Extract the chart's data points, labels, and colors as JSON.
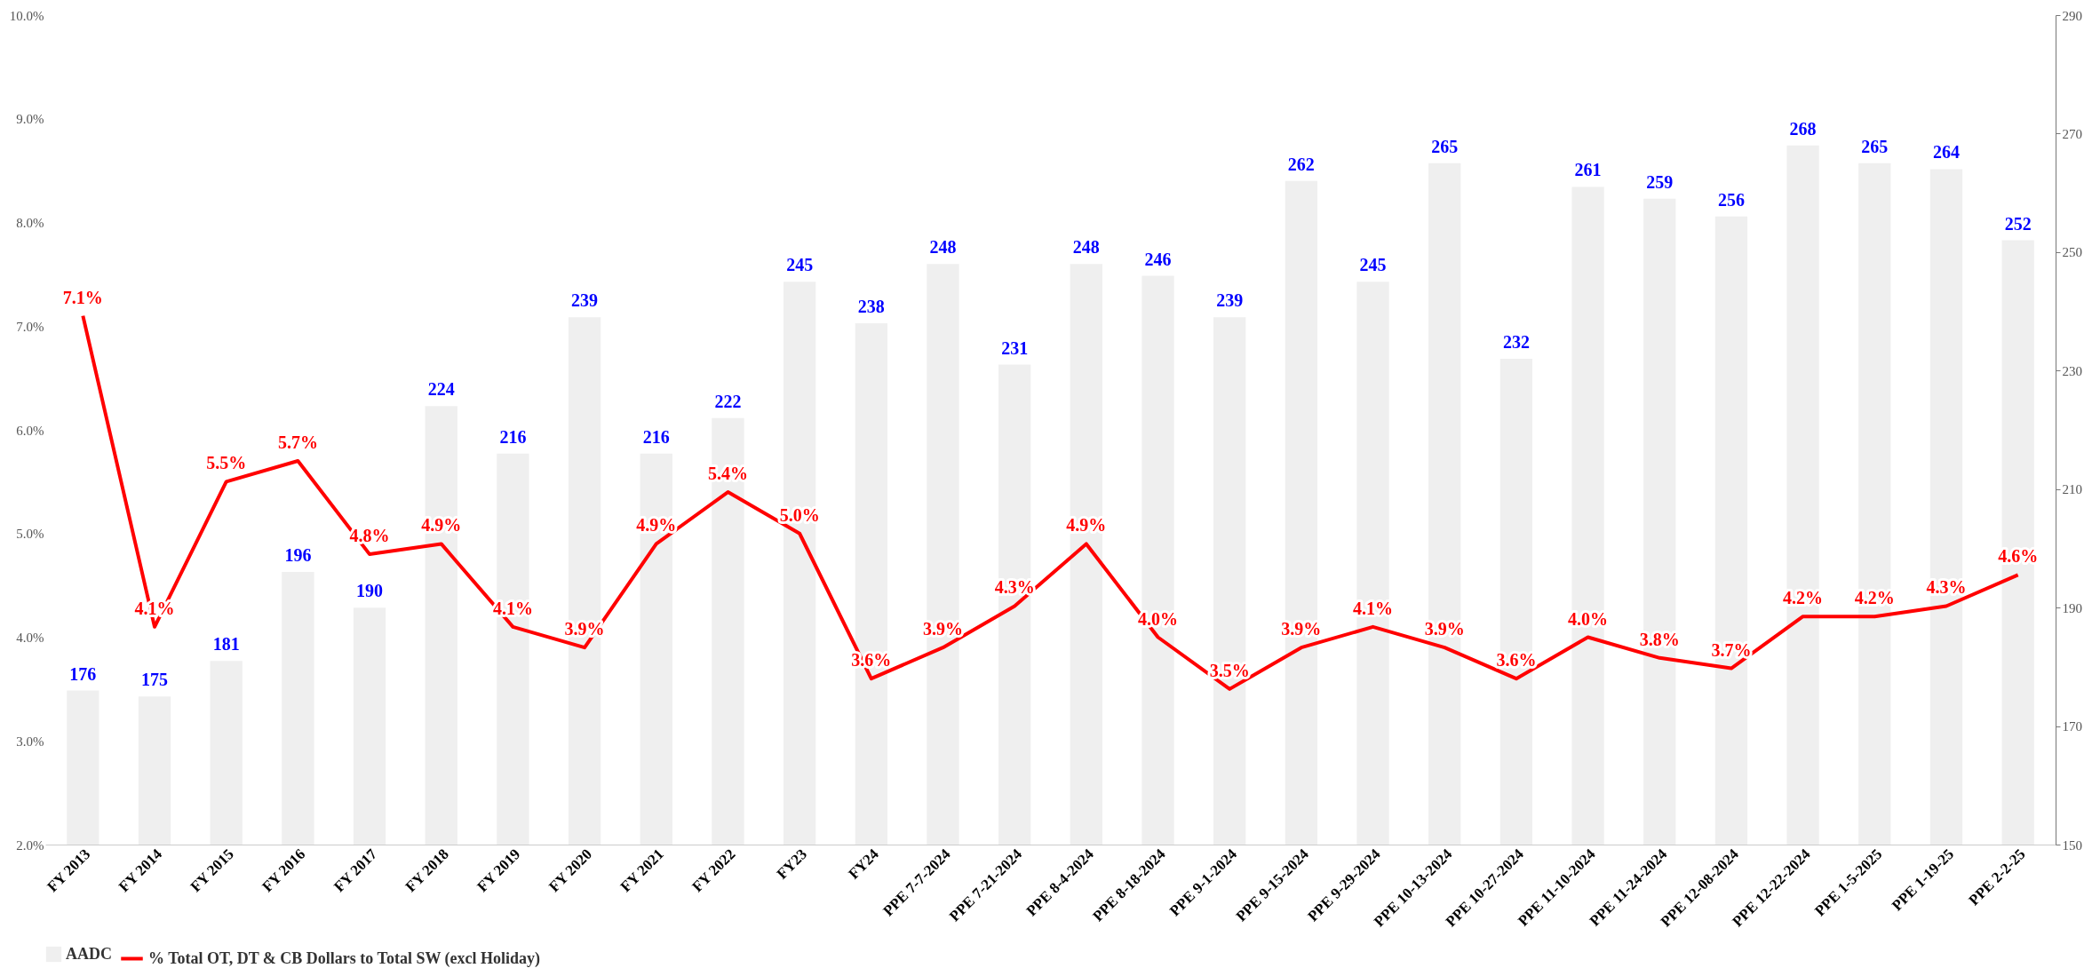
{
  "chart_data": {
    "type": "bar",
    "categories": [
      "FY 2013",
      "FY 2014",
      "FY 2015",
      "FY 2016",
      "FY 2017",
      "FY 2018",
      "FY 2019",
      "FY 2020",
      "FY 2021",
      "FY 2022",
      "FY23",
      "FY24",
      "PPE 7-7-2024",
      "PPE 7-21-2024",
      "PPE 8-4-2024",
      "PPE 8-18-2024",
      "PPE 9-1-2024",
      "PPE 9-15-2024",
      "PPE 9-29-2024",
      "PPE 10-13-2024",
      "PPE 10-27-2024",
      "PPE 11-10-2024",
      "PPE 11-24-2024",
      "PPE 12-08-2024",
      "PPE 12-22-2024",
      "PPE 1-5-2025",
      "PPE 1-19-25",
      "PPE 2-2-25"
    ],
    "series": [
      {
        "name": "AADC",
        "axis": "y2",
        "color": "#efefef",
        "values": [
          176,
          175,
          181,
          196,
          190,
          224,
          216,
          239,
          216,
          222,
          245,
          238,
          248,
          231,
          248,
          246,
          239,
          262,
          245,
          265,
          232,
          261,
          259,
          256,
          268,
          265,
          264,
          252
        ],
        "value_labels": [
          "176",
          "175",
          "181",
          "196",
          "190",
          "224",
          "216",
          "239",
          "216",
          "222",
          "245",
          "238",
          "248",
          "231",
          "248",
          "246",
          "239",
          "262",
          "245",
          "265",
          "232",
          "261",
          "259",
          "256",
          "268",
          "265",
          "264",
          "252"
        ]
      },
      {
        "name": "% Total OT, DT & CB Dollars to Total SW (excl Holiday)",
        "type": "line",
        "color": "#ff0000",
        "values": [
          7.1,
          4.1,
          5.5,
          5.7,
          4.8,
          4.9,
          4.1,
          3.9,
          4.9,
          5.4,
          5.0,
          3.6,
          3.9,
          4.3,
          4.9,
          4.0,
          3.5,
          3.9,
          4.1,
          3.9,
          3.6,
          4.0,
          3.8,
          3.7,
          4.2,
          4.2,
          4.3,
          4.6
        ],
        "value_labels": [
          "7.1%",
          "4.1%",
          "5.5%",
          "5.7%",
          "4.8%",
          "4.9%",
          "4.1%",
          "3.9%",
          "4.9%",
          "5.4%",
          "5.0%",
          "3.6%",
          "3.9%",
          "4.3%",
          "4.9%",
          "4.0%",
          "3.5%",
          "3.9%",
          "4.1%",
          "3.9%",
          "3.6%",
          "4.0%",
          "3.8%",
          "3.7%",
          "4.2%",
          "4.2%",
          "4.3%",
          "4.6%"
        ]
      }
    ],
    "ylim": [
      2,
      10
    ],
    "yticks": [
      {
        "value": 2,
        "label": "2.0%"
      },
      {
        "value": 3,
        "label": "3.0%"
      },
      {
        "value": 4,
        "label": "4.0%"
      },
      {
        "value": 5,
        "label": "5.0%"
      },
      {
        "value": 6,
        "label": "6.0%"
      },
      {
        "value": 7,
        "label": "7.0%"
      },
      {
        "value": 8,
        "label": "8.0%"
      },
      {
        "value": 9,
        "label": "9.0%"
      },
      {
        "value": 10,
        "label": "10.0%"
      }
    ],
    "y2lim": [
      150,
      290
    ],
    "y2ticks": [
      150,
      170,
      190,
      210,
      230,
      250,
      270,
      290
    ],
    "legend": "bottom"
  }
}
